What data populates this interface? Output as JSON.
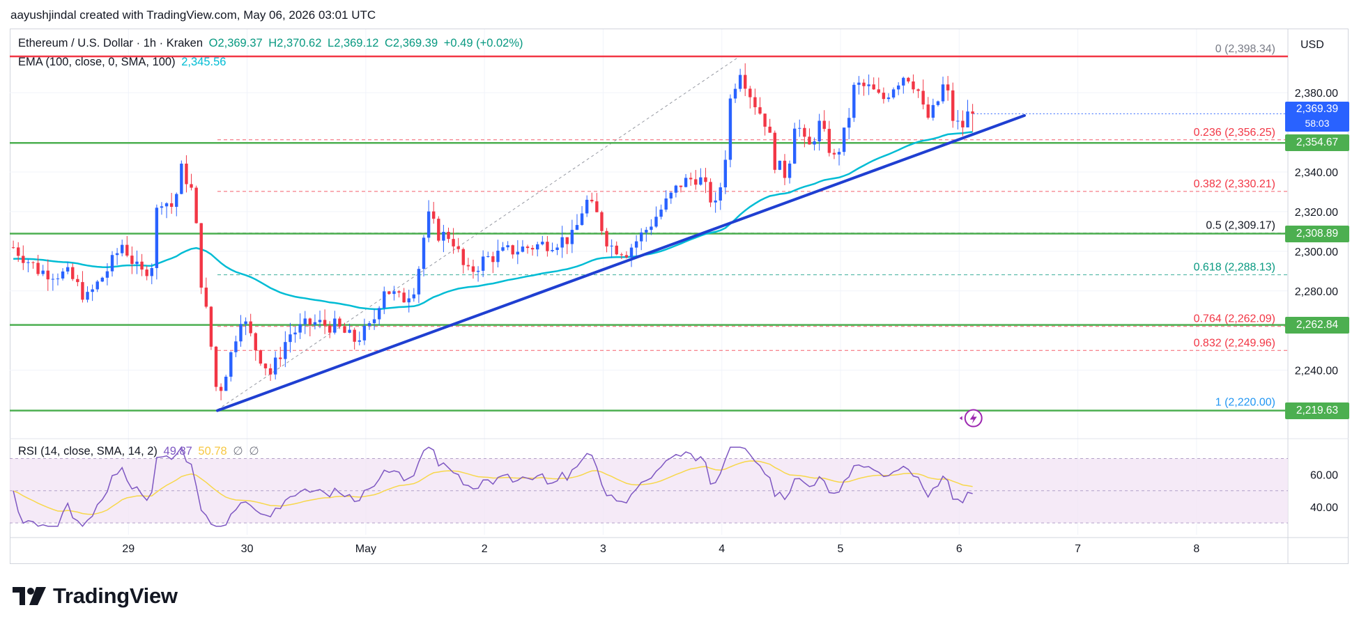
{
  "header": {
    "created_by": "aayushjindal created with TradingView.com, May 06, 2026 03:01 UTC"
  },
  "legend": {
    "symbol": "Ethereum / U.S. Dollar · 1h · Kraken",
    "open": "O2,369.37",
    "high": "H2,370.62",
    "low": "L2,369.12",
    "close": "C2,369.39",
    "change": "+0.49 (+0.02%)",
    "ema_label": "EMA (100, close, 0, SMA, 100)",
    "ema_value": "2,345.56"
  },
  "rsi_legend": {
    "label": "RSI (14, close, SMA, 14, 2)",
    "rsi_value": "49.87",
    "sma_value": "50.78",
    "extra1": "∅",
    "extra2": "∅"
  },
  "axis": {
    "currency": "USD",
    "price_ticks": [
      "2,380.00",
      "2,340.00",
      "2,320.00",
      "2,300.00",
      "2,280.00",
      "2,240.00"
    ],
    "price_tick_values": [
      2380,
      2340,
      2320,
      2300,
      2280,
      2240
    ],
    "rsi_ticks": [
      "60.00",
      "40.00"
    ],
    "rsi_tick_values": [
      60,
      40
    ],
    "time_labels": [
      "29",
      "30",
      "May",
      "2",
      "3",
      "4",
      "5",
      "6",
      "7",
      "8"
    ]
  },
  "price_badges": {
    "current": "2,369.39",
    "countdown": "58:03",
    "level_2354": "2,354.67",
    "level_2308": "2,308.89",
    "level_2262": "2,262.84",
    "level_2219": "2,219.63"
  },
  "fib_labels": [
    {
      "text": "0 (2,398.34)",
      "price": 2398.34,
      "color": "#787b86"
    },
    {
      "text": "0.236 (2,356.25)",
      "price": 2356.25,
      "color": "#f23645"
    },
    {
      "text": "0.382 (2,330.21)",
      "price": 2330.21,
      "color": "#f23645"
    },
    {
      "text": "0.5 (2,309.17)",
      "price": 2309.17,
      "color": "#131722"
    },
    {
      "text": "0.618 (2,288.13)",
      "price": 2288.13,
      "color": "#089981"
    },
    {
      "text": "0.764 (2,262.09)",
      "price": 2262.09,
      "color": "#f23645"
    },
    {
      "text": "0.832 (2,249.96)",
      "price": 2249.96,
      "color": "#f23645"
    },
    {
      "text": "1 (2,220.00)",
      "price": 2220.0,
      "color": "#2196f3"
    }
  ],
  "footer": {
    "brand": "TradingView"
  },
  "colors": {
    "up": "#2962ff",
    "down": "#f23645",
    "ema": "#00bcd4",
    "support": "#4caf50",
    "resistance": "#f23645",
    "trendline": "#1f3fd1",
    "rsi": "#7e57c2",
    "rsi_ma": "#f7d74a"
  },
  "chart_data": {
    "type": "candlestick",
    "symbol": "ETH/USD",
    "interval": "1h",
    "ylim": [
      2210,
      2405
    ],
    "time_labels": [
      "29",
      "30",
      "May",
      "2",
      "3",
      "4",
      "5",
      "6",
      "7",
      "8"
    ],
    "support_levels": [
      2354.67,
      2308.89,
      2262.84,
      2219.63
    ],
    "resistance_level": 2398.34,
    "trendline": {
      "from": {
        "day": 29.75,
        "price": 2219.63
      },
      "to": {
        "day": 36.55,
        "price": 2368.5
      }
    },
    "ema_100_last": 2345.56,
    "last_close": 2369.39,
    "rsi": {
      "period": 14,
      "last": 49.87,
      "ma_last": 50.78,
      "bands": [
        70,
        30
      ],
      "ylim": [
        27,
        78
      ]
    },
    "anchors": [
      {
        "day": 28.03,
        "price": 2302
      },
      {
        "day": 28.25,
        "price": 2290
      },
      {
        "day": 28.5,
        "price": 2288
      },
      {
        "day": 28.65,
        "price": 2276
      },
      {
        "day": 28.85,
        "price": 2293
      },
      {
        "day": 28.95,
        "price": 2304
      },
      {
        "day": 29.1,
        "price": 2288
      },
      {
        "day": 29.2,
        "price": 2294
      },
      {
        "day": 29.25,
        "price": 2328
      },
      {
        "day": 29.38,
        "price": 2322
      },
      {
        "day": 29.45,
        "price": 2342
      },
      {
        "day": 29.55,
        "price": 2328
      },
      {
        "day": 29.6,
        "price": 2290
      },
      {
        "day": 29.68,
        "price": 2260
      },
      {
        "day": 29.75,
        "price": 2226
      },
      {
        "day": 29.85,
        "price": 2245
      },
      {
        "day": 29.95,
        "price": 2268
      },
      {
        "day": 30.08,
        "price": 2250
      },
      {
        "day": 30.2,
        "price": 2238
      },
      {
        "day": 30.35,
        "price": 2258
      },
      {
        "day": 30.55,
        "price": 2264
      },
      {
        "day": 30.75,
        "price": 2262
      },
      {
        "day": 30.9,
        "price": 2255
      },
      {
        "day": 31.05,
        "price": 2262
      },
      {
        "day": 31.15,
        "price": 2282
      },
      {
        "day": 31.3,
        "price": 2275
      },
      {
        "day": 31.42,
        "price": 2283
      },
      {
        "day": 31.52,
        "price": 2318
      },
      {
        "day": 31.62,
        "price": 2308
      },
      {
        "day": 31.72,
        "price": 2308
      },
      {
        "day": 31.85,
        "price": 2288
      },
      {
        "day": 32.0,
        "price": 2296
      },
      {
        "day": 32.2,
        "price": 2300
      },
      {
        "day": 32.45,
        "price": 2303
      },
      {
        "day": 32.75,
        "price": 2307
      },
      {
        "day": 32.85,
        "price": 2326
      },
      {
        "day": 32.95,
        "price": 2318
      },
      {
        "day": 33.05,
        "price": 2303
      },
      {
        "day": 33.2,
        "price": 2300
      },
      {
        "day": 33.35,
        "price": 2310
      },
      {
        "day": 33.5,
        "price": 2322
      },
      {
        "day": 33.65,
        "price": 2334
      },
      {
        "day": 33.8,
        "price": 2338
      },
      {
        "day": 33.95,
        "price": 2322
      },
      {
        "day": 34.02,
        "price": 2342
      },
      {
        "day": 34.07,
        "price": 2376
      },
      {
        "day": 34.15,
        "price": 2393
      },
      {
        "day": 34.25,
        "price": 2378
      },
      {
        "day": 34.38,
        "price": 2364
      },
      {
        "day": 34.45,
        "price": 2344
      },
      {
        "day": 34.55,
        "price": 2338
      },
      {
        "day": 34.62,
        "price": 2368
      },
      {
        "day": 34.72,
        "price": 2350
      },
      {
        "day": 34.82,
        "price": 2364
      },
      {
        "day": 34.95,
        "price": 2346
      },
      {
        "day": 35.05,
        "price": 2362
      },
      {
        "day": 35.12,
        "price": 2384
      },
      {
        "day": 35.25,
        "price": 2382
      },
      {
        "day": 35.35,
        "price": 2376
      },
      {
        "day": 35.45,
        "price": 2384
      },
      {
        "day": 35.55,
        "price": 2390
      },
      {
        "day": 35.65,
        "price": 2382
      },
      {
        "day": 35.72,
        "price": 2366
      },
      {
        "day": 35.8,
        "price": 2372
      },
      {
        "day": 35.88,
        "price": 2386
      },
      {
        "day": 35.95,
        "price": 2366
      },
      {
        "day": 36.02,
        "price": 2362
      },
      {
        "day": 36.08,
        "price": 2370
      },
      {
        "day": 36.12,
        "price": 2369.39
      }
    ]
  }
}
